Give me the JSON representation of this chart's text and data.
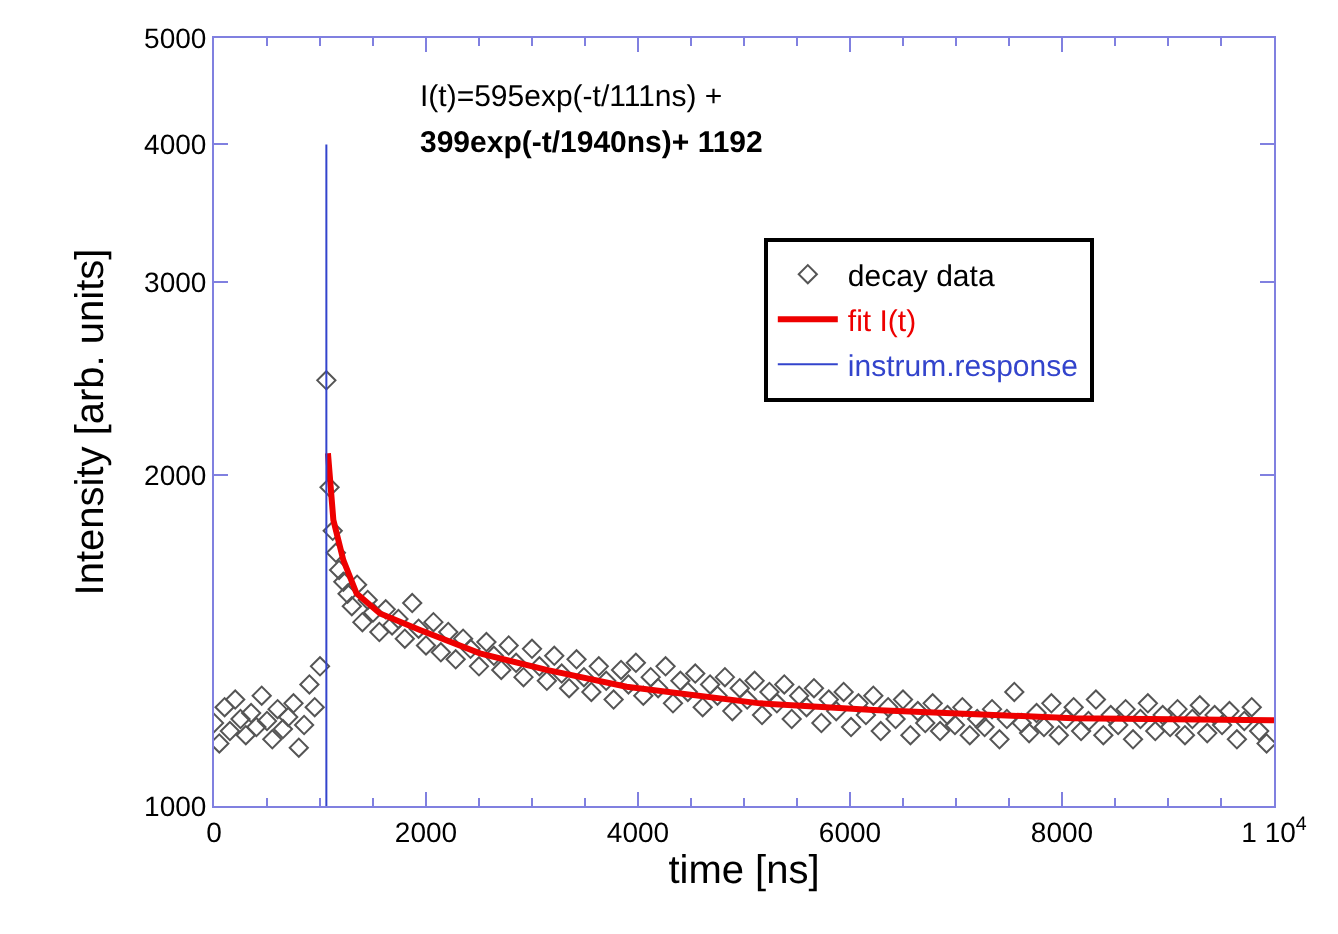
{
  "chart_data": {
    "type": "scatter",
    "xlabel": "time [ns]",
    "ylabel": "Intensity [arb. units]",
    "xlim": [
      0,
      10000
    ],
    "xticks": [
      0,
      2000,
      4000,
      6000,
      8000,
      {
        "value": 10000,
        "label": "1 10$^{4}$"
      }
    ],
    "ylim": [
      1000,
      5000
    ],
    "yticks": [
      1000,
      2000,
      3000,
      4000,
      5000
    ],
    "log": true,
    "grid": false,
    "legend": "top right",
    "annotations": [
      "I(t)=595exp(-t/111ns) +",
      "399exp(-t/1940ns)+ 1192"
    ],
    "series": [
      {
        "name": "decay data",
        "marker": "diamond",
        "color": "#555555",
        "x": [
          0,
          50,
          100,
          150,
          200,
          250,
          300,
          350,
          400,
          450,
          500,
          550,
          600,
          650,
          700,
          750,
          800,
          850,
          900,
          950,
          1000,
          1060,
          1090,
          1120,
          1150,
          1180,
          1220,
          1260,
          1300,
          1350,
          1400,
          1450,
          1500,
          1560,
          1620,
          1680,
          1740,
          1800,
          1870,
          1930,
          2000,
          2070,
          2140,
          2210,
          2280,
          2350,
          2420,
          2500,
          2570,
          2640,
          2710,
          2780,
          2850,
          2920,
          3000,
          3070,
          3140,
          3210,
          3280,
          3350,
          3420,
          3490,
          3560,
          3630,
          3700,
          3770,
          3840,
          3910,
          3980,
          4050,
          4120,
          4190,
          4260,
          4330,
          4400,
          4470,
          4540,
          4610,
          4680,
          4750,
          4820,
          4890,
          4960,
          5030,
          5100,
          5170,
          5240,
          5310,
          5380,
          5450,
          5520,
          5590,
          5660,
          5730,
          5800,
          5870,
          5940,
          6010,
          6080,
          6150,
          6220,
          6290,
          6360,
          6430,
          6500,
          6570,
          6640,
          6710,
          6780,
          6850,
          6920,
          6990,
          7060,
          7130,
          7200,
          7270,
          7340,
          7410,
          7480,
          7550,
          7620,
          7690,
          7760,
          7830,
          7900,
          7970,
          8040,
          8110,
          8180,
          8250,
          8320,
          8390,
          8460,
          8530,
          8600,
          8670,
          8740,
          8810,
          8880,
          8950,
          9020,
          9090,
          9160,
          9230,
          9300,
          9370,
          9440,
          9510,
          9580,
          9650,
          9720,
          9790,
          9860,
          9930
        ],
        "values": [
          1190,
          1140,
          1230,
          1170,
          1250,
          1200,
          1160,
          1215,
          1180,
          1260,
          1195,
          1150,
          1225,
          1175,
          1205,
          1240,
          1130,
          1185,
          1290,
          1230,
          1340,
          2440,
          1950,
          1780,
          1700,
          1640,
          1600,
          1560,
          1520,
          1590,
          1470,
          1540,
          1500,
          1440,
          1510,
          1460,
          1480,
          1420,
          1530,
          1450,
          1400,
          1470,
          1380,
          1440,
          1360,
          1420,
          1390,
          1340,
          1410,
          1370,
          1330,
          1400,
          1350,
          1310,
          1390,
          1340,
          1300,
          1370,
          1320,
          1280,
          1360,
          1310,
          1270,
          1340,
          1300,
          1250,
          1330,
          1290,
          1350,
          1260,
          1310,
          1280,
          1340,
          1240,
          1300,
          1270,
          1320,
          1230,
          1290,
          1260,
          1310,
          1220,
          1280,
          1250,
          1300,
          1210,
          1270,
          1240,
          1290,
          1200,
          1260,
          1230,
          1280,
          1190,
          1250,
          1220,
          1270,
          1180,
          1240,
          1210,
          1260,
          1170,
          1230,
          1200,
          1250,
          1160,
          1220,
          1190,
          1240,
          1170,
          1210,
          1185,
          1230,
          1160,
          1200,
          1180,
          1225,
          1150,
          1200,
          1270,
          1190,
          1165,
          1215,
          1180,
          1240,
          1160,
          1200,
          1230,
          1170,
          1195,
          1250,
          1160,
          1210,
          1185,
          1225,
          1150,
          1200,
          1240,
          1170,
          1210,
          1180,
          1225,
          1160,
          1200,
          1235,
          1165,
          1210,
          1185,
          1220,
          1150,
          1195,
          1230,
          1170,
          1140
        ]
      },
      {
        "name": "fit I(t)",
        "type": "line",
        "marker": "none",
        "color": "#ee0000",
        "x": [
          1075,
          1126,
          1220,
          1345,
          1566,
          1943,
          2509,
          3138,
          3893,
          5151,
          6221,
          8108,
          10000
        ],
        "values": [
          2094,
          1821,
          1674,
          1561,
          1497,
          1446,
          1377,
          1330,
          1284,
          1240,
          1223,
          1202,
          1197
        ]
      },
      {
        "name": "instrum.response",
        "type": "line",
        "marker": "none",
        "color": "#3344cc",
        "x": [
          1060,
          1060
        ],
        "values": [
          1000,
          4000
        ]
      }
    ]
  }
}
